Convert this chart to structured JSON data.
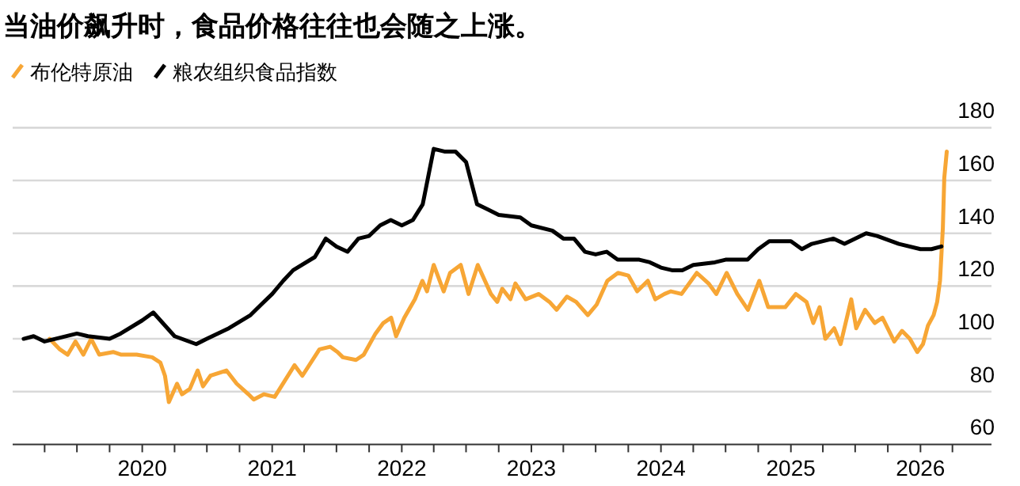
{
  "chart_data": {
    "type": "line",
    "title": "当油价飙升时，食品价格往往也会随之上涨。",
    "legend": "top left",
    "grid": "y",
    "marker": "none",
    "line_style": "solid",
    "xlim": [
      "2019-01-01",
      "2026-07-20"
    ],
    "ylim": [
      60,
      180
    ],
    "yticks": [
      60,
      80,
      100,
      120,
      140,
      160,
      180
    ],
    "xticks": [
      {
        "value": "2019-04-01",
        "label": null
      },
      {
        "value": "2019-07-01",
        "label": null
      },
      {
        "value": "2019-10-01",
        "label": null
      },
      "2020",
      {
        "value": "2020-04-01",
        "label": null
      },
      {
        "value": "2020-07-01",
        "label": null
      },
      {
        "value": "2020-10-01",
        "label": null
      },
      "2021",
      {
        "value": "2021-04-01",
        "label": null
      },
      {
        "value": "2021-07-01",
        "label": null
      },
      {
        "value": "2021-10-01",
        "label": null
      },
      "2022",
      {
        "value": "2022-04-01",
        "label": null
      },
      {
        "value": "2022-07-01",
        "label": null
      },
      {
        "value": "2022-10-01",
        "label": null
      },
      "2023",
      {
        "value": "2023-04-01",
        "label": null
      },
      {
        "value": "2023-07-01",
        "label": null
      },
      {
        "value": "2023-10-01",
        "label": null
      },
      "2024",
      {
        "value": "2024-04-01",
        "label": null
      },
      {
        "value": "2024-07-01",
        "label": null
      },
      {
        "value": "2024-10-01",
        "label": null
      },
      "2025",
      {
        "value": "2025-04-01",
        "label": null
      },
      {
        "value": "2025-07-01",
        "label": null
      },
      {
        "value": "2025-10-01",
        "label": null
      },
      "2026",
      {
        "value": "2026-04-01",
        "label": null
      }
    ],
    "series": [
      {
        "name": "布伦特原油",
        "color": "#f7a635",
        "x": [
          "2019-04-15",
          "2019-05-14",
          "2019-06-05",
          "2019-06-27",
          "2019-07-19",
          "2019-08-10",
          "2019-09-02",
          "2019-10-11",
          "2019-11-03",
          "2019-12-16",
          "2020-01-29",
          "2020-02-21",
          "2020-03-05",
          "2020-03-16",
          "2020-04-08",
          "2020-04-22",
          "2020-05-14",
          "2020-06-05",
          "2020-06-20",
          "2020-07-11",
          "2020-08-25",
          "2020-09-23",
          "2020-10-26",
          "2020-11-10",
          "2020-12-09",
          "2021-01-08",
          "2021-01-22",
          "2021-03-05",
          "2021-03-27",
          "2021-05-14",
          "2021-06-13",
          "2021-07-04",
          "2021-07-19",
          "2021-08-25",
          "2021-09-16",
          "2021-10-19",
          "2021-11-10",
          "2021-12-02",
          "2021-12-16",
          "2022-01-08",
          "2022-02-07",
          "2022-02-28",
          "2022-03-13",
          "2022-04-01",
          "2022-04-29",
          "2022-05-17",
          "2022-06-16",
          "2022-07-08",
          "2022-08-03",
          "2022-09-09",
          "2022-09-27",
          "2022-10-11",
          "2022-11-03",
          "2022-11-17",
          "2022-12-16",
          "2023-01-22",
          "2023-02-21",
          "2023-03-13",
          "2023-04-11",
          "2023-05-07",
          "2023-06-09",
          "2023-07-04",
          "2023-08-03",
          "2023-09-02",
          "2023-10-01",
          "2023-10-26",
          "2023-11-25",
          "2023-12-16",
          "2024-01-11",
          "2024-01-29",
          "2024-02-28",
          "2024-04-11",
          "2024-05-14",
          "2024-06-05",
          "2024-07-04",
          "2024-08-03",
          "2024-09-02",
          "2024-10-04",
          "2024-10-29",
          "2024-12-16",
          "2025-01-15",
          "2025-02-14",
          "2025-03-05",
          "2025-03-23",
          "2025-04-08",
          "2025-05-03",
          "2025-05-21",
          "2025-06-20",
          "2025-07-04",
          "2025-07-29",
          "2025-08-25",
          "2025-09-16",
          "2025-10-19",
          "2025-11-10",
          "2025-12-02",
          "2025-12-23",
          "2026-01-08",
          "2026-01-22",
          "2026-02-07",
          "2026-02-17",
          "2026-02-25",
          "2026-03-05",
          "2026-03-09",
          "2026-03-16"
        ],
        "values": [
          100,
          96,
          94,
          99,
          94,
          100,
          94,
          95,
          94,
          94,
          93,
          91,
          86,
          76,
          83,
          79,
          81,
          88,
          82,
          86,
          88,
          83,
          79,
          77,
          79,
          78,
          81,
          90,
          86,
          96,
          97,
          95,
          93,
          92,
          94,
          102,
          106,
          108,
          101,
          108,
          115,
          122,
          118,
          128,
          118,
          125,
          128,
          117,
          128,
          117,
          114,
          119,
          115,
          121,
          115,
          117,
          114,
          111,
          116,
          114,
          109,
          113,
          122,
          125,
          124,
          118,
          122,
          115,
          117,
          118,
          117,
          125,
          121,
          117,
          125,
          117,
          111,
          122,
          112,
          112,
          117,
          114,
          106,
          112,
          100,
          104,
          98,
          115,
          104,
          111,
          106,
          108,
          99,
          103,
          100,
          95,
          98,
          105,
          109,
          114,
          122,
          142,
          161,
          171
        ]
      },
      {
        "name": "粮农组织食品指数",
        "color": "#000000",
        "x": [
          "2019-02",
          "2019-03",
          "2019-04",
          "2019-05",
          "2019-07",
          "2019-08",
          "2019-10",
          "2019-11",
          "2020-01",
          "2020-02",
          "2020-04",
          "2020-06",
          "2020-07",
          "2020-09",
          "2020-11",
          "2020-12",
          "2021-01",
          "2021-02",
          "2021-03",
          "2021-05",
          "2021-06",
          "2021-07",
          "2021-08",
          "2021-09",
          "2021-10",
          "2021-11",
          "2021-12",
          "2022-01",
          "2022-02",
          "2022-03",
          "2022-04",
          "2022-05",
          "2022-06",
          "2022-07",
          "2022-08",
          "2022-09",
          "2022-10",
          "2022-12",
          "2023-01",
          "2023-03",
          "2023-04",
          "2023-05",
          "2023-06",
          "2023-07",
          "2023-08",
          "2023-09",
          "2023-11",
          "2023-12",
          "2024-01",
          "2024-02",
          "2024-03",
          "2024-04",
          "2024-06",
          "2024-07",
          "2024-09",
          "2024-10",
          "2024-11",
          "2025-01",
          "2025-02",
          "2025-03",
          "2025-05",
          "2025-06",
          "2025-07",
          "2025-08",
          "2025-09",
          "2025-11",
          "2026-01",
          "2026-02",
          "2026-03"
        ],
        "values": [
          100,
          101,
          99,
          100,
          102,
          101,
          100,
          102,
          107,
          110,
          101,
          98,
          100,
          104,
          109,
          113,
          117,
          122,
          126,
          131,
          138,
          135,
          133,
          138,
          139,
          143,
          145,
          143,
          145,
          151,
          172,
          171,
          171,
          167,
          151,
          149,
          147,
          146,
          143,
          141,
          138,
          138,
          133,
          132,
          133,
          130,
          130,
          129,
          127,
          126,
          126,
          128,
          129,
          130,
          130,
          134,
          137,
          137,
          134,
          136,
          138,
          136,
          138,
          140,
          139,
          136,
          134,
          134,
          135
        ]
      }
    ]
  }
}
